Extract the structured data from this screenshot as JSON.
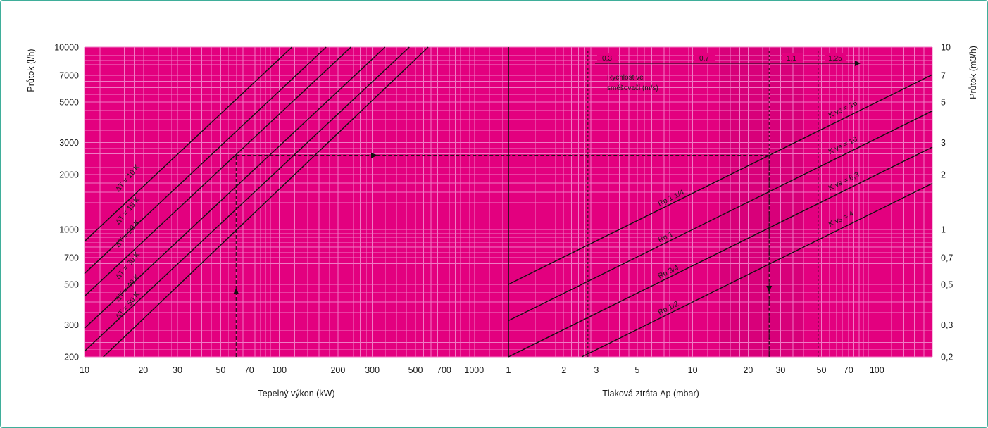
{
  "colors": {
    "plot_bg": "#e3007f",
    "grid": "#f07ac4",
    "lines": "#111111",
    "frame": "#3fae9a"
  },
  "chart_data": [
    {
      "type": "line",
      "scale": "log-log",
      "xlabel": "Tepelný výkon (kW)",
      "ylabel": "Průtok (l/h)",
      "xlim": [
        10,
        1500
      ],
      "ylim": [
        200,
        10000
      ],
      "x_ticks": [
        "10",
        "20",
        "30",
        "50",
        "70",
        "100",
        "200",
        "300",
        "500",
        "700",
        "1000"
      ],
      "y_ticks": [
        "200",
        "300",
        "500",
        "700",
        "1000",
        "2000",
        "3000",
        "5000",
        "7000",
        "10000"
      ],
      "series": [
        {
          "name": "ΔT = 10 K",
          "x": [
            10,
            116
          ],
          "y": [
            860,
            10000
          ]
        },
        {
          "name": "ΔT = 15 K",
          "x": [
            10,
            174
          ],
          "y": [
            573,
            10000
          ]
        },
        {
          "name": "ΔT = 20 K",
          "x": [
            10,
            233
          ],
          "y": [
            430,
            10000
          ]
        },
        {
          "name": "ΔT = 30 K",
          "x": [
            10,
            349
          ],
          "y": [
            287,
            10000
          ]
        },
        {
          "name": "ΔT = 40 K",
          "x": [
            10,
            465
          ],
          "y": [
            215,
            10000
          ]
        },
        {
          "name": "ΔT = 50 K",
          "x": [
            12.5,
            581
          ],
          "y": [
            200,
            10000
          ]
        }
      ],
      "annotations": {
        "example_x": 60,
        "example_y": 2550
      }
    },
    {
      "type": "line",
      "scale": "log-log",
      "xlabel": "Tlaková ztráta Δp (mbar)",
      "ylabel": "Průtok (m3/h)",
      "xlim": [
        1,
        200
      ],
      "ylim": [
        0.2,
        10
      ],
      "x_ticks": [
        "1",
        "2",
        "3",
        "5",
        "10",
        "20",
        "30",
        "50",
        "70",
        "100"
      ],
      "y_ticks": [
        "0,2",
        "0,3",
        "0,5",
        "0,7",
        "1",
        "2",
        "3",
        "5",
        "7",
        "10"
      ],
      "series": [
        {
          "name": "Rp 1 1/4",
          "label": "K vs = 16",
          "x": [
            1,
            200
          ],
          "y": [
            0.5,
            7.07
          ]
        },
        {
          "name": "Rp 1",
          "label": "K vs = 10",
          "x": [
            1,
            200
          ],
          "y": [
            0.316,
            4.47
          ]
        },
        {
          "name": "Rp 3/4",
          "label": "K vs = 6,3",
          "x": [
            1,
            200
          ],
          "y": [
            0.2,
            2.83
          ]
        },
        {
          "name": "Rp 1/2",
          "label": "K vs = 4",
          "x": [
            2.5,
            200
          ],
          "y": [
            0.2,
            1.79
          ]
        }
      ],
      "velocity": {
        "label_line1": "Rychlost ve",
        "label_line2": "směšovači (m/s)",
        "values": [
          "0,3",
          "0,7",
          "1,1",
          "1,25"
        ],
        "positions_dp": [
          2.7,
          15,
          26,
          48
        ]
      },
      "annotations": {
        "example_dp": 26,
        "example_flow": 2.55
      }
    }
  ]
}
